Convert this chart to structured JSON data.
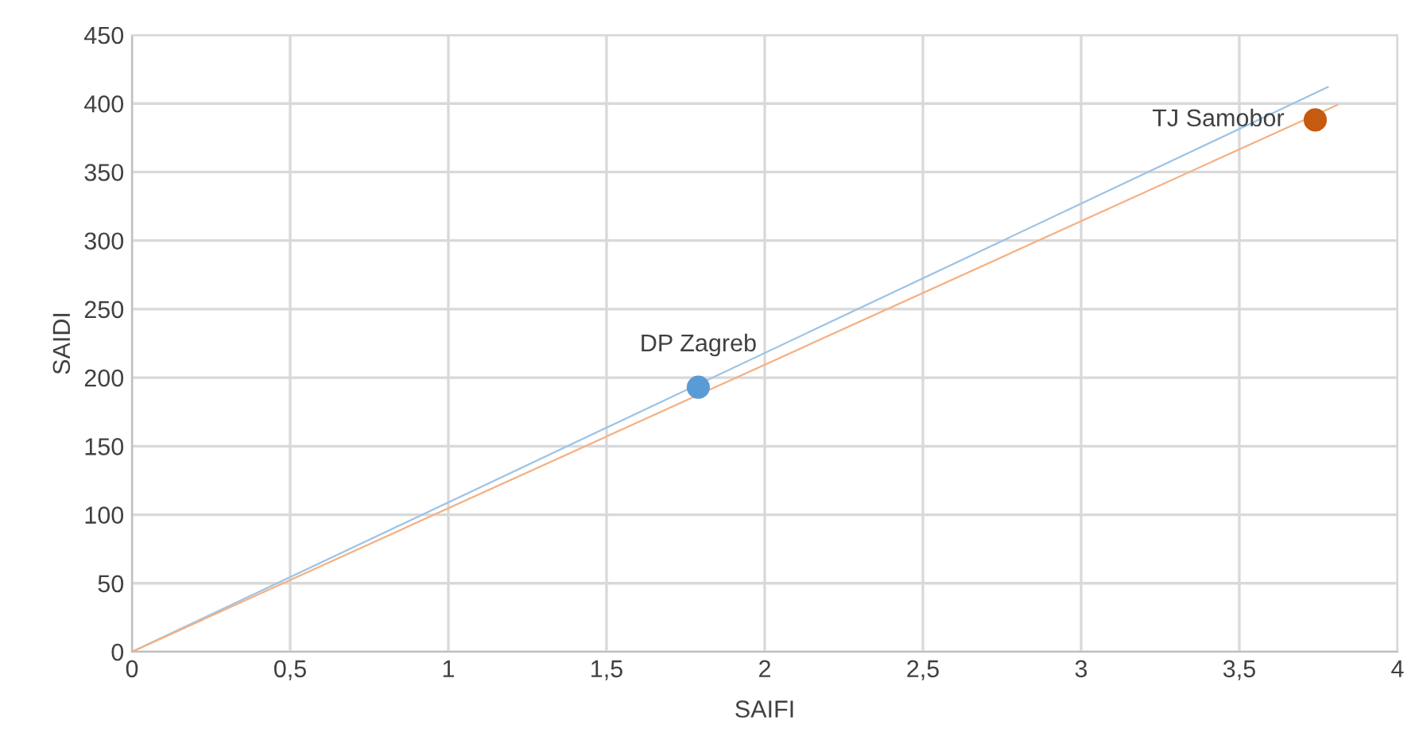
{
  "chart_data": {
    "type": "scatter",
    "xlabel": "SAIFI",
    "ylabel": "SAIDI",
    "series": [
      {
        "color": "#5b9bd5",
        "marker": "circle",
        "x": [
          1.79
        ],
        "values": [
          193
        ]
      },
      {
        "color": "#c55a11",
        "marker": "circle",
        "x": [
          3.74
        ],
        "values": [
          388
        ]
      },
      {
        "type": "line",
        "color": "#9dc3e6",
        "x": [
          0,
          3.78
        ],
        "values": [
          0,
          412
        ]
      },
      {
        "type": "line",
        "color": "#f4b183",
        "x": [
          0,
          3.81
        ],
        "values": [
          0,
          399
        ]
      }
    ],
    "annotations": [
      {
        "text": "DP Zagreb",
        "x": 1.79,
        "y": 193
      },
      {
        "text": "TJ Samobor",
        "x": 3.74,
        "y": 388
      }
    ],
    "xlim": [
      0,
      4
    ],
    "xticks": [
      0,
      {
        "value": 0.5,
        "label": "0,5"
      },
      1,
      {
        "value": 1.5,
        "label": "1,5"
      },
      2,
      {
        "value": 2.5,
        "label": "2,5"
      },
      3,
      {
        "value": 3.5,
        "label": "3,5"
      },
      4
    ],
    "ylim": [
      0,
      450
    ],
    "yticks": [
      0,
      50,
      100,
      150,
      200,
      250,
      300,
      350,
      400,
      450
    ],
    "grid": true
  }
}
